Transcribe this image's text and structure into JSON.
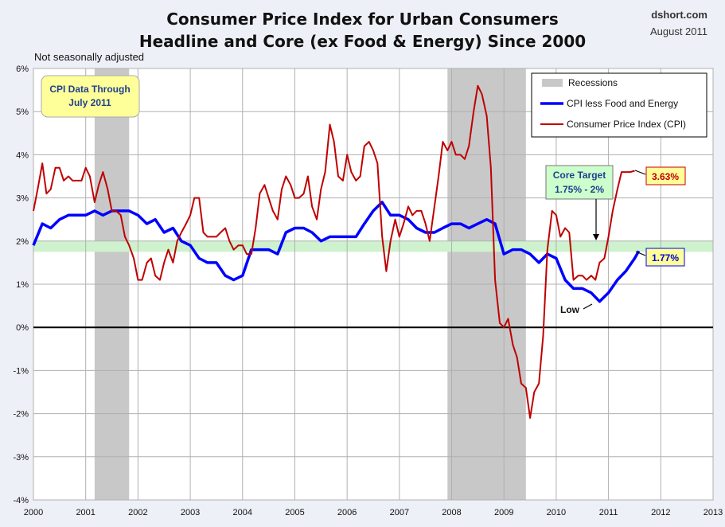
{
  "title_line1": "Consumer Price Index for Urban Consumers",
  "title_line2": "Headline and Core (ex Food & Energy) Since 2000",
  "source": "dshort.com",
  "date": "August 2011",
  "note": "Not seasonally adjusted",
  "callout": {
    "line1": "CPI Data Through",
    "line2": "July 2011"
  },
  "core_target": {
    "line1": "Core Target",
    "line2": "1.75% - 2%",
    "low": 1.75,
    "high": 2.0
  },
  "low_label": "Low",
  "colors": {
    "cpi": "#c00000",
    "core": "#0000ff",
    "recession": "#c8c8c8",
    "target_band": "#cdf2cd",
    "callout_fill": "#ffff99",
    "target_fill": "#ccffcc"
  },
  "chart_data": {
    "type": "line",
    "xlim": [
      2000,
      2013
    ],
    "ylim": [
      -4,
      6
    ],
    "x_ticks": [
      "2000",
      "2001",
      "2002",
      "2003",
      "2004",
      "2005",
      "2006",
      "2007",
      "2008",
      "2009",
      "2010",
      "2011",
      "2012",
      "2013"
    ],
    "y_ticks": [
      "-4%",
      "-3%",
      "-2%",
      "-1%",
      "0%",
      "1%",
      "2%",
      "3%",
      "4%",
      "5%",
      "6%"
    ],
    "grid": true,
    "legend_position": "top-right",
    "legend": [
      "Recessions",
      "CPI less Food and Energy",
      "Consumer Price Index (CPI)"
    ],
    "recessions": [
      [
        2001.17,
        2001.83
      ],
      [
        2007.92,
        2009.42
      ]
    ],
    "series": [
      {
        "name": "CPI less Food and Energy",
        "x": [
          2000,
          2000.17,
          2000.33,
          2000.5,
          2000.67,
          2000.83,
          2001,
          2001.17,
          2001.33,
          2001.5,
          2001.67,
          2001.83,
          2002,
          2002.17,
          2002.33,
          2002.5,
          2002.67,
          2002.83,
          2003,
          2003.17,
          2003.33,
          2003.5,
          2003.67,
          2003.83,
          2004,
          2004.17,
          2004.33,
          2004.5,
          2004.67,
          2004.83,
          2005,
          2005.17,
          2005.33,
          2005.5,
          2005.67,
          2005.83,
          2006,
          2006.17,
          2006.33,
          2006.5,
          2006.67,
          2006.83,
          2007,
          2007.17,
          2007.33,
          2007.5,
          2007.67,
          2007.83,
          2008,
          2008.17,
          2008.33,
          2008.5,
          2008.67,
          2008.83,
          2009,
          2009.17,
          2009.33,
          2009.5,
          2009.67,
          2009.83,
          2010,
          2010.17,
          2010.33,
          2010.5,
          2010.67,
          2010.83,
          2011,
          2011.17,
          2011.33,
          2011.5,
          2011.58
        ],
        "y": [
          1.9,
          2.4,
          2.3,
          2.5,
          2.6,
          2.6,
          2.6,
          2.7,
          2.6,
          2.7,
          2.7,
          2.7,
          2.6,
          2.4,
          2.5,
          2.2,
          2.3,
          2.0,
          1.9,
          1.6,
          1.5,
          1.5,
          1.2,
          1.1,
          1.2,
          1.8,
          1.8,
          1.8,
          1.7,
          2.2,
          2.3,
          2.3,
          2.2,
          2.0,
          2.1,
          2.1,
          2.1,
          2.1,
          2.4,
          2.7,
          2.9,
          2.6,
          2.6,
          2.5,
          2.3,
          2.2,
          2.2,
          2.3,
          2.4,
          2.4,
          2.3,
          2.4,
          2.5,
          2.4,
          1.7,
          1.8,
          1.8,
          1.7,
          1.5,
          1.7,
          1.6,
          1.1,
          0.9,
          0.9,
          0.8,
          0.6,
          0.8,
          1.1,
          1.3,
          1.6,
          1.77
        ]
      },
      {
        "name": "Consumer Price Index (CPI)",
        "x": [
          2000,
          2000.08,
          2000.17,
          2000.25,
          2000.33,
          2000.42,
          2000.5,
          2000.58,
          2000.67,
          2000.75,
          2000.83,
          2000.92,
          2001,
          2001.08,
          2001.17,
          2001.25,
          2001.33,
          2001.42,
          2001.5,
          2001.58,
          2001.67,
          2001.75,
          2001.83,
          2001.92,
          2002,
          2002.08,
          2002.17,
          2002.25,
          2002.33,
          2002.42,
          2002.5,
          2002.58,
          2002.67,
          2002.75,
          2002.83,
          2002.92,
          2003,
          2003.08,
          2003.17,
          2003.25,
          2003.33,
          2003.42,
          2003.5,
          2003.58,
          2003.67,
          2003.75,
          2003.83,
          2003.92,
          2004,
          2004.08,
          2004.17,
          2004.25,
          2004.33,
          2004.42,
          2004.5,
          2004.58,
          2004.67,
          2004.75,
          2004.83,
          2004.92,
          2005,
          2005.08,
          2005.17,
          2005.25,
          2005.33,
          2005.42,
          2005.5,
          2005.58,
          2005.67,
          2005.75,
          2005.83,
          2005.92,
          2006,
          2006.08,
          2006.17,
          2006.25,
          2006.33,
          2006.42,
          2006.5,
          2006.58,
          2006.67,
          2006.75,
          2006.83,
          2006.92,
          2007,
          2007.08,
          2007.17,
          2007.25,
          2007.33,
          2007.42,
          2007.5,
          2007.58,
          2007.67,
          2007.75,
          2007.83,
          2007.92,
          2008,
          2008.08,
          2008.17,
          2008.25,
          2008.33,
          2008.42,
          2008.5,
          2008.58,
          2008.67,
          2008.75,
          2008.83,
          2008.92,
          2009,
          2009.08,
          2009.17,
          2009.25,
          2009.33,
          2009.42,
          2009.5,
          2009.58,
          2009.67,
          2009.75,
          2009.83,
          2009.92,
          2010,
          2010.08,
          2010.17,
          2010.25,
          2010.33,
          2010.42,
          2010.5,
          2010.58,
          2010.67,
          2010.75,
          2010.83,
          2010.92,
          2011,
          2011.08,
          2011.17,
          2011.25,
          2011.33,
          2011.42,
          2011.5
        ],
        "y": [
          2.7,
          3.2,
          3.8,
          3.1,
          3.2,
          3.7,
          3.7,
          3.4,
          3.5,
          3.4,
          3.4,
          3.4,
          3.7,
          3.5,
          2.9,
          3.3,
          3.6,
          3.2,
          2.7,
          2.7,
          2.6,
          2.1,
          1.9,
          1.6,
          1.1,
          1.1,
          1.5,
          1.6,
          1.2,
          1.1,
          1.5,
          1.8,
          1.5,
          2.0,
          2.2,
          2.4,
          2.6,
          3.0,
          3.0,
          2.2,
          2.1,
          2.1,
          2.1,
          2.2,
          2.3,
          2.0,
          1.8,
          1.9,
          1.9,
          1.7,
          1.7,
          2.3,
          3.1,
          3.3,
          3.0,
          2.7,
          2.5,
          3.2,
          3.5,
          3.3,
          3.0,
          3.0,
          3.1,
          3.5,
          2.8,
          2.5,
          3.2,
          3.6,
          4.7,
          4.3,
          3.5,
          3.4,
          4.0,
          3.6,
          3.4,
          3.5,
          4.2,
          4.3,
          4.1,
          3.8,
          2.1,
          1.3,
          2.0,
          2.5,
          2.1,
          2.4,
          2.8,
          2.6,
          2.7,
          2.7,
          2.4,
          2.0,
          2.8,
          3.5,
          4.3,
          4.1,
          4.3,
          4.0,
          4.0,
          3.9,
          4.2,
          5.0,
          5.6,
          5.4,
          4.9,
          3.7,
          1.1,
          0.1,
          0.0,
          0.2,
          -0.4,
          -0.7,
          -1.3,
          -1.4,
          -2.1,
          -1.5,
          -1.3,
          -0.2,
          1.8,
          2.7,
          2.6,
          2.1,
          2.3,
          2.2,
          1.1,
          1.2,
          1.2,
          1.1,
          1.2,
          1.1,
          1.5,
          1.6,
          2.1,
          2.7,
          3.2,
          3.6,
          3.6,
          3.6,
          3.63
        ]
      }
    ],
    "end_labels": {
      "core": "1.77%",
      "cpi": "3.63%"
    }
  }
}
